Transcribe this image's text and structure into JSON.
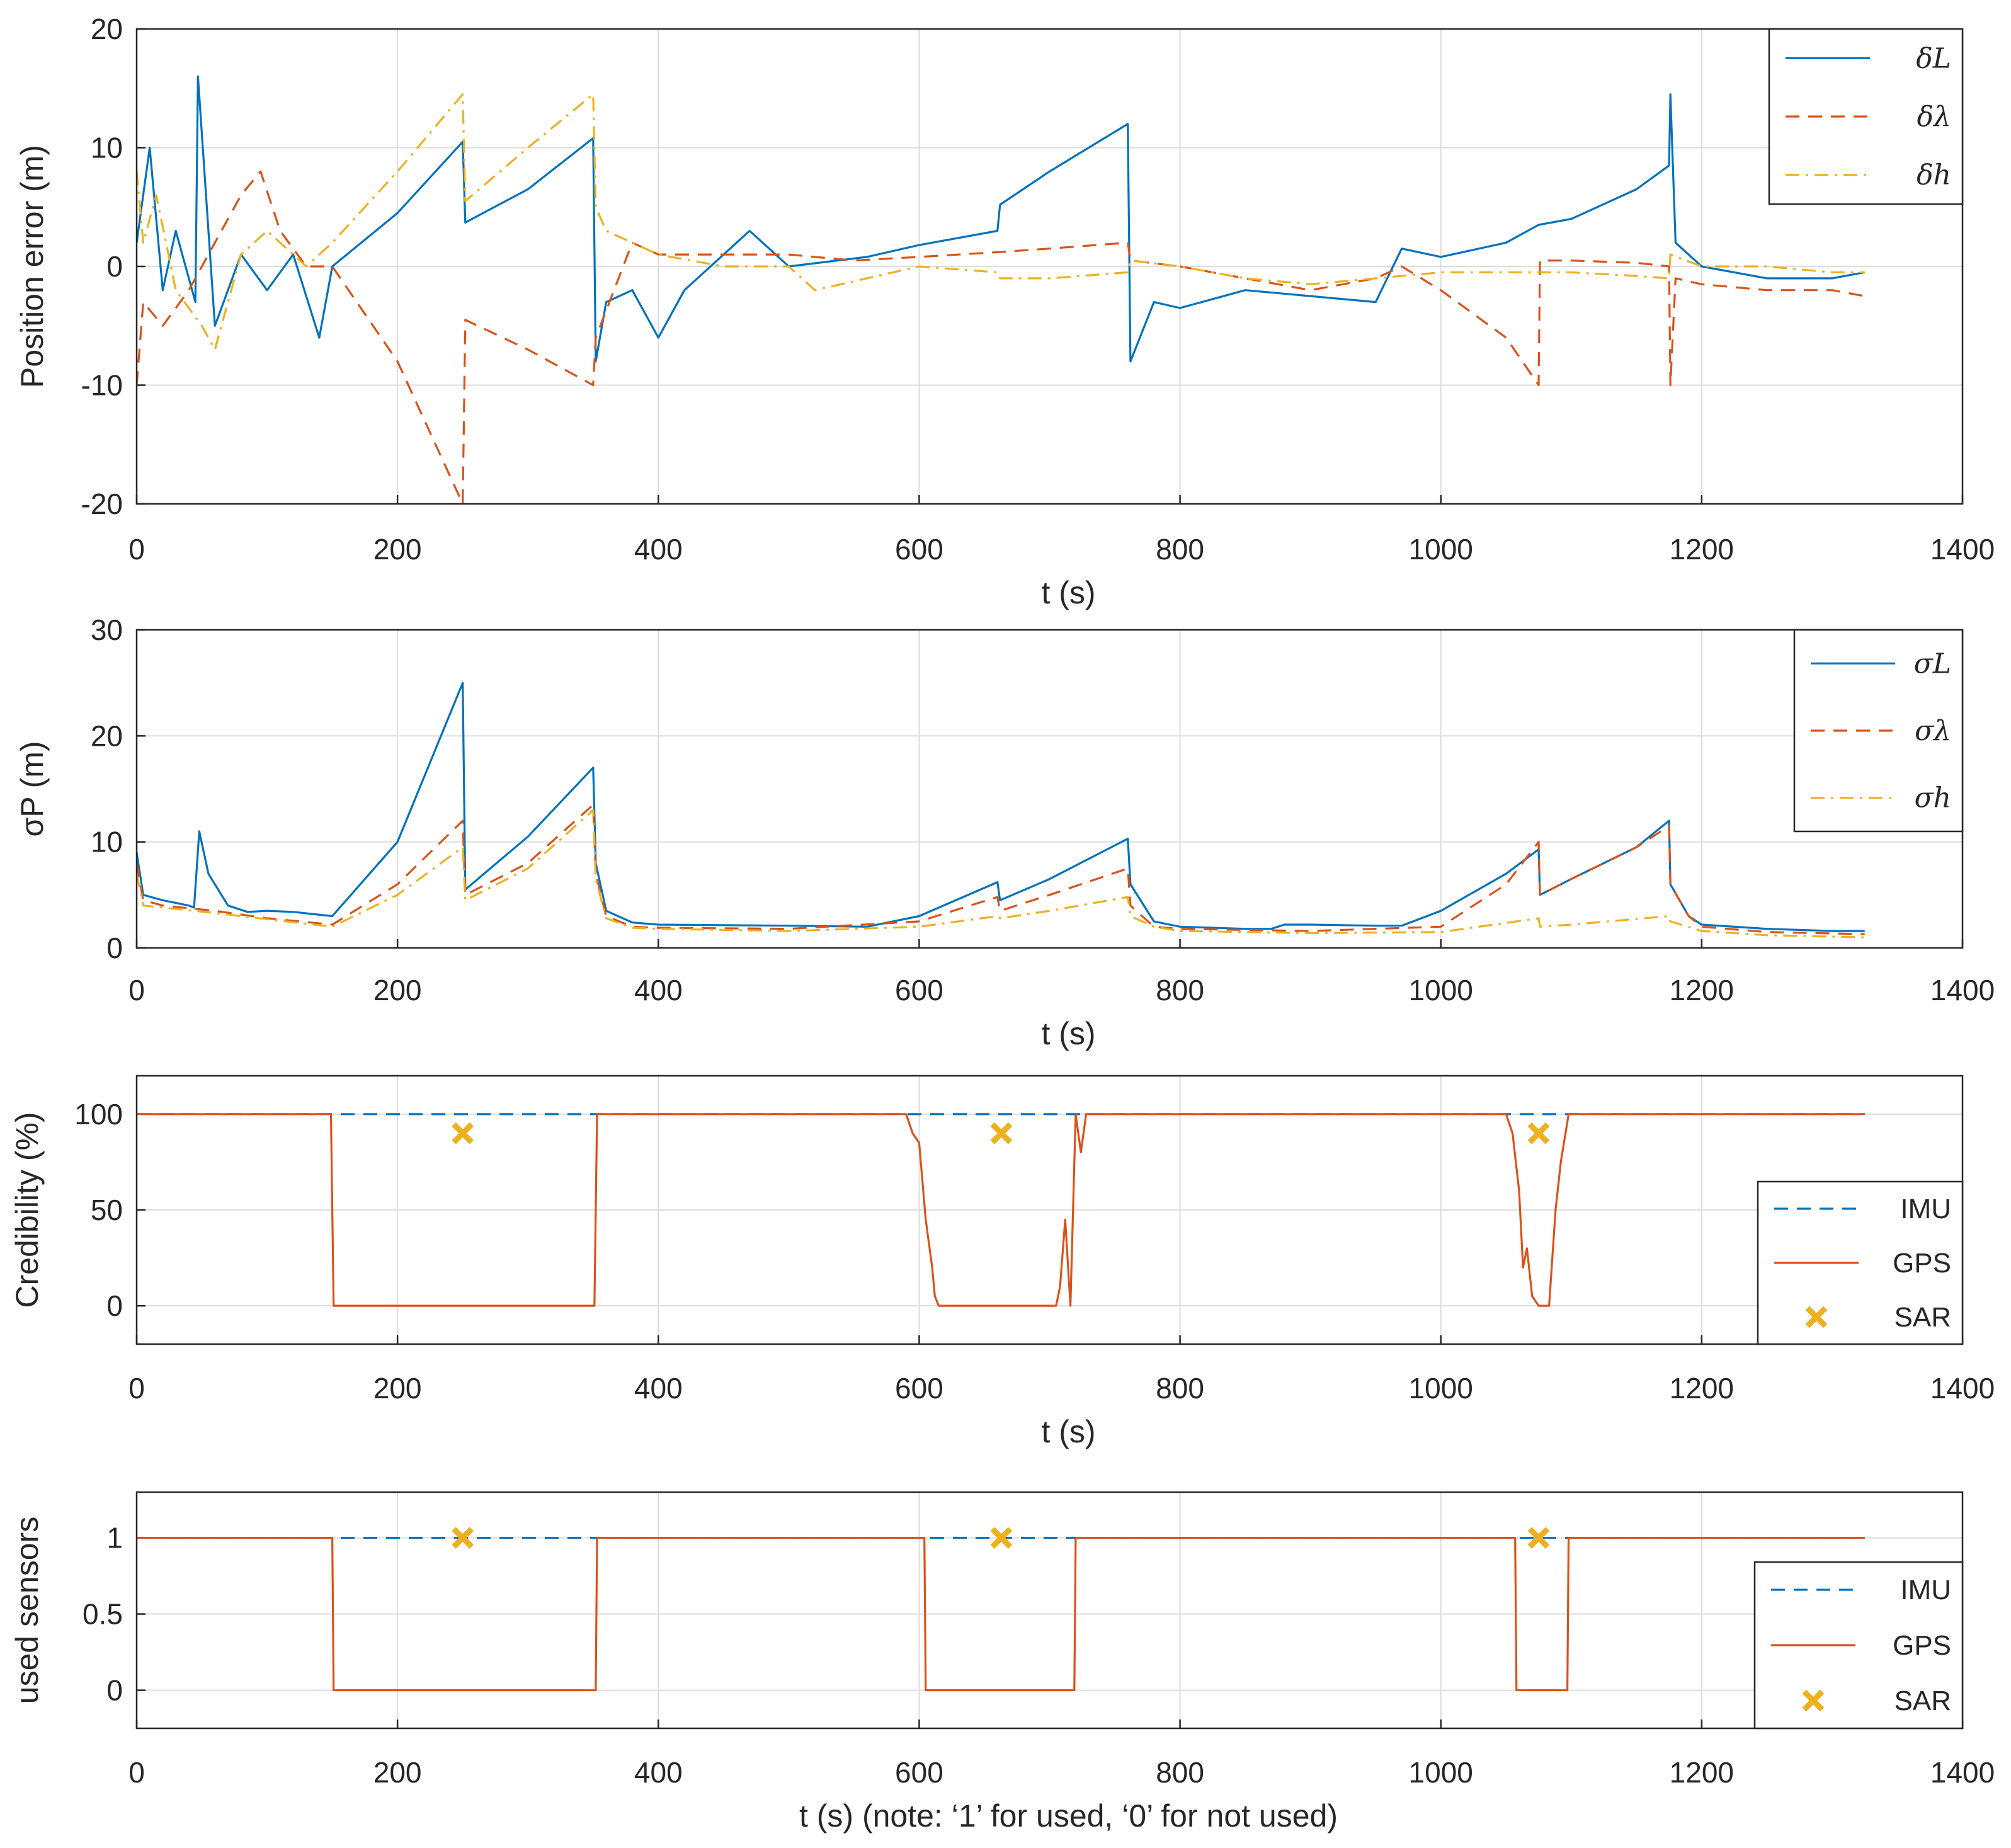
{
  "colors": {
    "blue": "#0072BD",
    "orange": "#D95319",
    "yellow": "#EDB120",
    "axis": "#262626",
    "grid": "#dcdcdc"
  },
  "chart_data": [
    {
      "type": "line",
      "title": "",
      "xlabel": "t (s)",
      "ylabel": "Position error (m)",
      "xlim": [
        0,
        1400
      ],
      "ylim": [
        -20,
        20
      ],
      "xticks": [
        "0",
        "200",
        "400",
        "600",
        "800",
        "1000",
        "1200",
        "1400"
      ],
      "yticks": [
        "-20",
        "-10",
        "0",
        "10",
        "20"
      ],
      "grid": true,
      "legend_position": "top-right",
      "series": [
        {
          "name": "δL",
          "style": "solid",
          "color": "#0072BD",
          "x": [
            0,
            10,
            20,
            30,
            45,
            47,
            60,
            80,
            100,
            120,
            140,
            150,
            200,
            250,
            252,
            300,
            350,
            352,
            360,
            380,
            400,
            420,
            440,
            470,
            500,
            560,
            600,
            660,
            662,
            700,
            760,
            762,
            780,
            800,
            850,
            900,
            950,
            970,
            1000,
            1050,
            1075,
            1100,
            1150,
            1175,
            1176,
            1180,
            1200,
            1250,
            1300,
            1325
          ],
          "y": [
            2,
            10,
            -2,
            3,
            -3,
            16,
            -5,
            1,
            -2,
            1,
            -6,
            0,
            4.5,
            10.5,
            3.7,
            6.5,
            10.8,
            -8,
            -3,
            -2,
            -6,
            -2,
            0,
            3,
            0,
            0.8,
            1.8,
            3,
            5.2,
            8,
            12,
            -8,
            -3,
            -3.5,
            -2,
            -2.5,
            -3,
            1.5,
            0.8,
            2,
            3.5,
            4,
            6.5,
            8.5,
            14.5,
            2,
            0,
            -1,
            -1,
            -0.5
          ]
        },
        {
          "name": "δλ",
          "style": "dashed",
          "color": "#D95319",
          "x": [
            0,
            5,
            20,
            40,
            60,
            80,
            95,
            110,
            130,
            150,
            200,
            250,
            252,
            300,
            350,
            352,
            380,
            400,
            450,
            500,
            550,
            600,
            660,
            700,
            760,
            762,
            800,
            850,
            900,
            950,
            970,
            1000,
            1050,
            1075,
            1076,
            1100,
            1150,
            1175,
            1176,
            1180,
            1200,
            1250,
            1300,
            1325
          ],
          "y": [
            -10,
            -3,
            -5,
            -2,
            2,
            6,
            8,
            3,
            0,
            0,
            -8,
            -20,
            -4.5,
            -7,
            -10,
            -6,
            2,
            1,
            1,
            1,
            0.5,
            0.8,
            1.2,
            1.5,
            2,
            0.5,
            0,
            -1,
            -2,
            -1,
            0,
            -2,
            -6,
            -10,
            0.5,
            0.5,
            0.3,
            0,
            -10,
            -1,
            -1.5,
            -2,
            -2,
            -2.5
          ]
        },
        {
          "name": "δh",
          "style": "dashdot",
          "color": "#EDB120",
          "x": [
            0,
            5,
            15,
            30,
            50,
            60,
            80,
            100,
            130,
            150,
            200,
            250,
            252,
            300,
            350,
            352,
            360,
            400,
            450,
            500,
            520,
            600,
            660,
            662,
            700,
            760,
            762,
            800,
            850,
            900,
            950,
            1000,
            1050,
            1075,
            1100,
            1150,
            1175,
            1176,
            1200,
            1250,
            1300,
            1325
          ],
          "y": [
            8,
            2,
            6,
            -2,
            -5,
            -7,
            1,
            3,
            0,
            2,
            8,
            14.5,
            5.5,
            10,
            14.5,
            5,
            3,
            1,
            0,
            0,
            -2,
            0,
            -0.5,
            -1,
            -1,
            -0.5,
            0.5,
            0,
            -1,
            -1.5,
            -1,
            -0.5,
            -0.5,
            -0.5,
            -0.5,
            -0.8,
            -1,
            1,
            0,
            0,
            -0.5,
            -0.5
          ]
        }
      ]
    },
    {
      "type": "line",
      "title": "",
      "xlabel": "t (s)",
      "ylabel": "σP (m)",
      "xlim": [
        0,
        1400
      ],
      "ylim": [
        0,
        30
      ],
      "xticks": [
        "0",
        "200",
        "400",
        "600",
        "800",
        "1000",
        "1200",
        "1400"
      ],
      "yticks": [
        "0",
        "10",
        "20",
        "30"
      ],
      "grid": true,
      "legend_position": "top-right",
      "series": [
        {
          "name": "σL",
          "style": "solid",
          "color": "#0072BD",
          "x": [
            0,
            5,
            20,
            40,
            44,
            48,
            55,
            70,
            85,
            100,
            120,
            150,
            200,
            250,
            252,
            300,
            350,
            352,
            360,
            380,
            400,
            500,
            560,
            600,
            660,
            662,
            700,
            760,
            762,
            780,
            800,
            850,
            870,
            880,
            900,
            950,
            970,
            1000,
            1050,
            1075,
            1076,
            1100,
            1150,
            1175,
            1176,
            1190,
            1200,
            1250,
            1300,
            1325
          ],
          "y": [
            9,
            5,
            4.5,
            4,
            3.8,
            11,
            7,
            4,
            3.4,
            3.5,
            3.4,
            3,
            10,
            25,
            5.5,
            10.5,
            17,
            8,
            3.5,
            2.4,
            2.2,
            2.1,
            2,
            3,
            6.2,
            4.5,
            6.5,
            10.3,
            6,
            2.5,
            2,
            1.8,
            1.8,
            2.2,
            2.2,
            2.1,
            2.1,
            3.5,
            7,
            9.3,
            5,
            6.5,
            9.5,
            12,
            6,
            3,
            2.2,
            1.8,
            1.6,
            1.6
          ]
        },
        {
          "name": "σλ",
          "style": "dashed",
          "color": "#D95319",
          "x": [
            0,
            5,
            20,
            60,
            100,
            150,
            200,
            250,
            252,
            300,
            350,
            352,
            360,
            380,
            400,
            500,
            600,
            660,
            662,
            700,
            760,
            762,
            780,
            800,
            900,
            1000,
            1050,
            1075,
            1076,
            1100,
            1150,
            1175,
            1176,
            1190,
            1200,
            1250,
            1325
          ],
          "y": [
            8,
            4.5,
            4,
            3.5,
            2.8,
            2.2,
            6,
            12,
            5,
            8,
            13.5,
            7,
            3,
            2,
            1.9,
            1.8,
            2.5,
            4.8,
            3.5,
            5,
            7.5,
            4,
            2,
            1.8,
            1.6,
            2,
            6,
            10,
            5,
            6.5,
            9.5,
            11.5,
            6,
            3,
            2,
            1.5,
            1.3
          ]
        },
        {
          "name": "σh",
          "style": "dashdot",
          "color": "#EDB120",
          "x": [
            0,
            5,
            20,
            60,
            100,
            150,
            200,
            250,
            252,
            300,
            350,
            352,
            360,
            380,
            400,
            500,
            600,
            660,
            662,
            700,
            760,
            762,
            780,
            800,
            900,
            1000,
            1075,
            1076,
            1100,
            1175,
            1176,
            1200,
            1250,
            1325
          ],
          "y": [
            7,
            4,
            3.8,
            3.3,
            2.7,
            2,
            5,
            9.5,
            4.5,
            7.5,
            13,
            6.5,
            2.8,
            1.9,
            1.8,
            1.6,
            2,
            3,
            2.8,
            3.5,
            4.8,
            3,
            2,
            1.6,
            1.4,
            1.5,
            2.8,
            2,
            2.2,
            3,
            2.5,
            1.6,
            1.2,
            1
          ]
        }
      ]
    },
    {
      "type": "line",
      "title": "",
      "xlabel": "t (s)",
      "ylabel": "Credibility (%)",
      "xlim": [
        0,
        1400
      ],
      "ylim": [
        -20,
        120
      ],
      "xticks": [
        "0",
        "200",
        "400",
        "600",
        "800",
        "1000",
        "1200",
        "1400"
      ],
      "yticks": [
        "0",
        "50",
        "100"
      ],
      "grid": true,
      "legend_position": "bottom-right",
      "series": [
        {
          "name": "IMU",
          "style": "dashed",
          "color": "#0072BD",
          "x": [
            0,
            1325
          ],
          "y": [
            100,
            100
          ]
        },
        {
          "name": "GPS",
          "style": "solid",
          "color": "#D95319",
          "x": [
            0,
            149,
            151,
            351,
            353,
            590,
            595,
            600,
            605,
            610,
            612,
            615,
            705,
            708,
            712,
            716,
            720,
            724,
            728,
            1050,
            1055,
            1060,
            1063,
            1066,
            1070,
            1075,
            1078,
            1083,
            1088,
            1092,
            1098,
            1325
          ],
          "y": [
            100,
            100,
            0,
            0,
            100,
            100,
            90,
            85,
            45,
            20,
            5,
            0,
            0,
            10,
            45,
            0,
            100,
            80,
            100,
            100,
            90,
            60,
            20,
            30,
            5,
            0,
            0,
            0,
            50,
            75,
            100,
            100
          ]
        },
        {
          "name": "SAR",
          "style": "marker-x",
          "color": "#EDB120",
          "x": [
            250,
            663,
            1075
          ],
          "y": [
            90,
            90,
            90
          ]
        }
      ]
    },
    {
      "type": "line",
      "title": "",
      "xlabel": "t (s) (note: ‘1’ for used, ‘0’ for not used)",
      "ylabel": "used sensors",
      "xlim": [
        0,
        1400
      ],
      "ylim": [
        -0.25,
        1.3
      ],
      "xticks": [
        "0",
        "200",
        "400",
        "600",
        "800",
        "1000",
        "1200",
        "1400"
      ],
      "yticks": [
        "0",
        "0.5",
        "1"
      ],
      "grid": true,
      "legend_position": "bottom-right",
      "series": [
        {
          "name": "IMU",
          "style": "dashed",
          "color": "#0072BD",
          "x": [
            0,
            1325
          ],
          "y": [
            1,
            1
          ]
        },
        {
          "name": "GPS",
          "style": "solid",
          "color": "#D95319",
          "x": [
            0,
            150,
            151,
            352,
            353,
            604,
            605,
            719,
            720,
            1057,
            1058,
            1097,
            1098,
            1325
          ],
          "y": [
            1,
            1,
            0,
            0,
            1,
            1,
            0,
            0,
            1,
            1,
            0,
            0,
            1,
            1
          ]
        },
        {
          "name": "SAR",
          "style": "marker-x",
          "color": "#EDB120",
          "x": [
            250,
            663,
            1075
          ],
          "y": [
            1,
            1,
            1
          ]
        }
      ]
    }
  ]
}
